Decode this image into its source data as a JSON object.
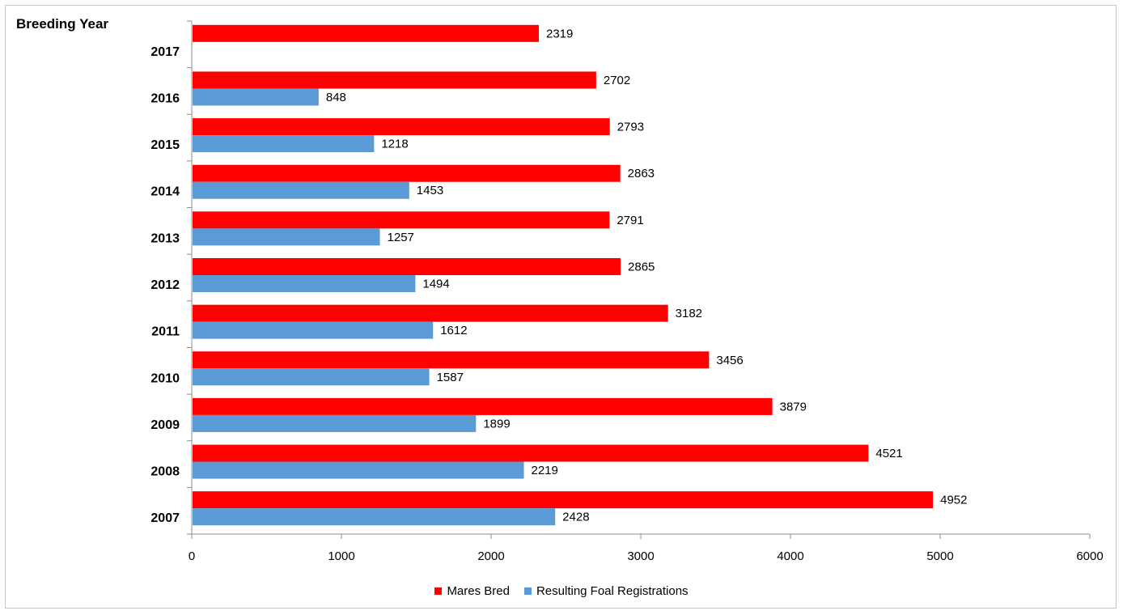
{
  "chart_data": {
    "type": "bar",
    "orientation": "horizontal",
    "y_title": "Breeding Year",
    "categories": [
      "2017",
      "2016",
      "2015",
      "2014",
      "2013",
      "2012",
      "2011",
      "2010",
      "2009",
      "2008",
      "2007"
    ],
    "series": [
      {
        "name": "Mares Bred",
        "color": "#ff0000",
        "values": [
          2319,
          2702,
          2793,
          2863,
          2791,
          2865,
          3182,
          3456,
          3879,
          4521,
          4952
        ]
      },
      {
        "name": "Resulting Foal Registrations",
        "color": "#5b9bd5",
        "values": [
          null,
          848,
          1218,
          1453,
          1257,
          1494,
          1612,
          1587,
          1899,
          2219,
          2428
        ]
      }
    ],
    "xlim": [
      0,
      6000
    ],
    "x_ticks": [
      0,
      1000,
      2000,
      3000,
      4000,
      5000,
      6000
    ],
    "grid": false,
    "data_labels": true,
    "legend_position": "bottom"
  }
}
